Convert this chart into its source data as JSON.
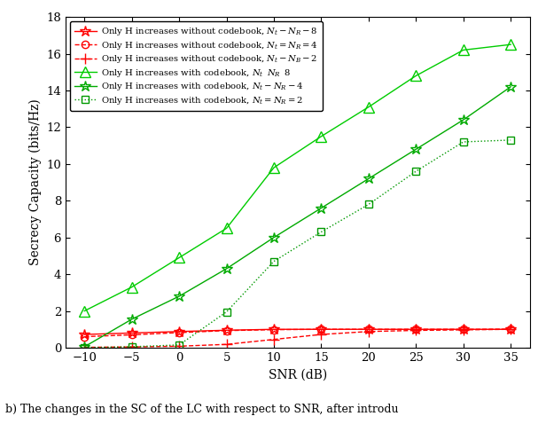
{
  "snr": [
    -10,
    -5,
    0,
    5,
    10,
    15,
    20,
    25,
    30,
    35
  ],
  "red_star": [
    0.72,
    0.8,
    0.88,
    0.95,
    1.0,
    1.0,
    1.0,
    1.0,
    1.0,
    1.0
  ],
  "red_circle": [
    0.6,
    0.7,
    0.82,
    0.93,
    0.98,
    1.0,
    1.0,
    1.0,
    1.0,
    1.0
  ],
  "red_plus": [
    0.02,
    0.04,
    0.08,
    0.18,
    0.45,
    0.72,
    0.88,
    0.94,
    0.97,
    1.0
  ],
  "green_tri8": [
    2.0,
    3.3,
    4.9,
    6.5,
    9.8,
    11.5,
    13.1,
    14.8,
    16.2,
    16.5
  ],
  "green_star4": [
    0.05,
    1.55,
    2.8,
    4.3,
    6.0,
    7.6,
    9.2,
    10.8,
    12.4,
    14.2
  ],
  "green_sq2": [
    0.0,
    0.05,
    0.15,
    1.95,
    4.7,
    6.3,
    7.8,
    9.6,
    11.2,
    11.3
  ],
  "legend0": "Only H increases without codebook, $N_t - N_R - 8$",
  "legend1": "Only H increases without codebook, $N_t = N_R = 4$",
  "legend2": "Only H increases without codebook, $N_t - N_B - 2$",
  "legend3": "Only H increases with codebook, $N_t \\;\\; N_R \\;\\; 8$",
  "legend4": "Only H increases with codebook, $N_t - N_R - 4$",
  "legend5": "Only H increases with codebook, $N_t = N_R = 2$",
  "xlabel": "SNR (dB)",
  "ylabel": "Secrecy Capacity (bits/Hz)",
  "caption": "b) The changes in the SC of the LC with respect to SNR, after introdu",
  "xlim": [
    -12,
    37
  ],
  "ylim": [
    0,
    18
  ],
  "yticks": [
    0,
    2,
    4,
    6,
    8,
    10,
    12,
    14,
    16,
    18
  ],
  "xticks": [
    -10,
    -5,
    0,
    5,
    10,
    15,
    20,
    25,
    30,
    35
  ]
}
